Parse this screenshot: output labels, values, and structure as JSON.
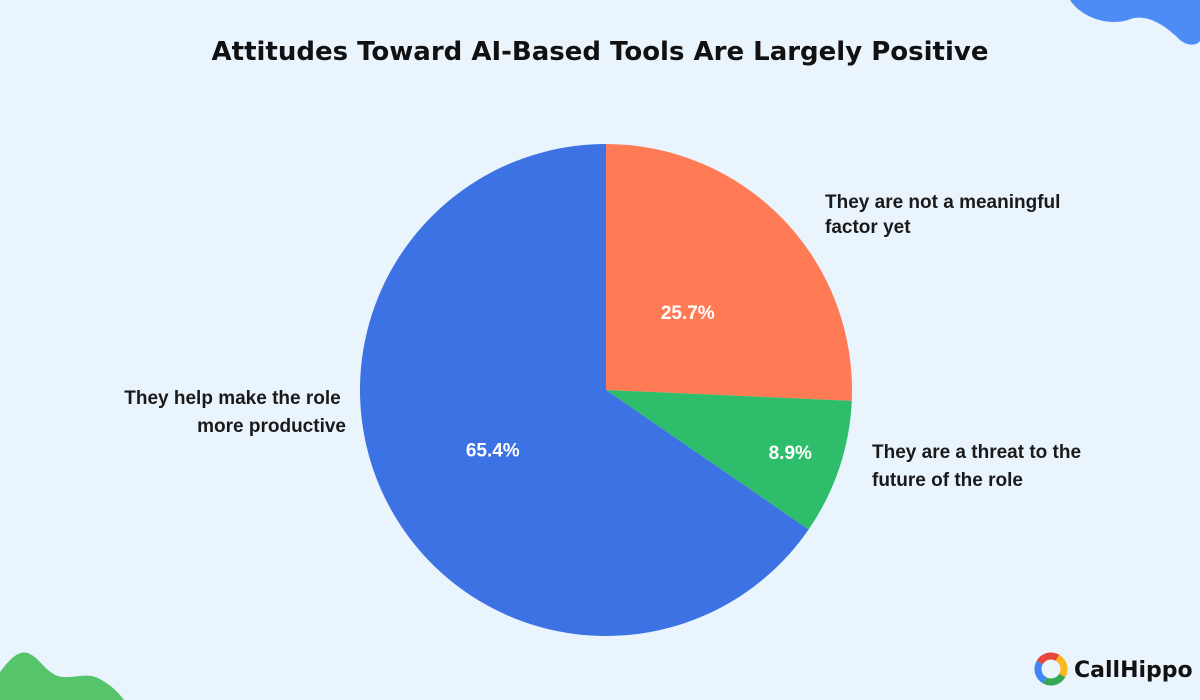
{
  "chart_data": {
    "type": "pie",
    "title": "Attitudes Toward AI-Based Tools Are Largely Positive",
    "slices": [
      {
        "label_lines": [
          "They are not a meaningful",
          "factor yet"
        ],
        "value": 25.7,
        "value_label": "25.7%",
        "color": "#ff7b55"
      },
      {
        "label_lines": [
          "They are a threat to the",
          "future of the role"
        ],
        "value": 8.9,
        "value_label": "8.9%",
        "color": "#2ebd6a"
      },
      {
        "label_lines": [
          "They help make the role",
          "more productive"
        ],
        "value": 65.4,
        "value_label": "65.4%",
        "color": "#3d72e4"
      }
    ],
    "start": "12 o'clock",
    "direction": "clockwise",
    "legend": "none"
  },
  "brand": {
    "name": "CallHippo",
    "accent_colors": [
      "#e8453c",
      "#f9b81b",
      "#34a853",
      "#4285f4"
    ],
    "blob_colors": {
      "top_right": "#4d8cf5",
      "bottom_left": "#56c46a"
    }
  }
}
